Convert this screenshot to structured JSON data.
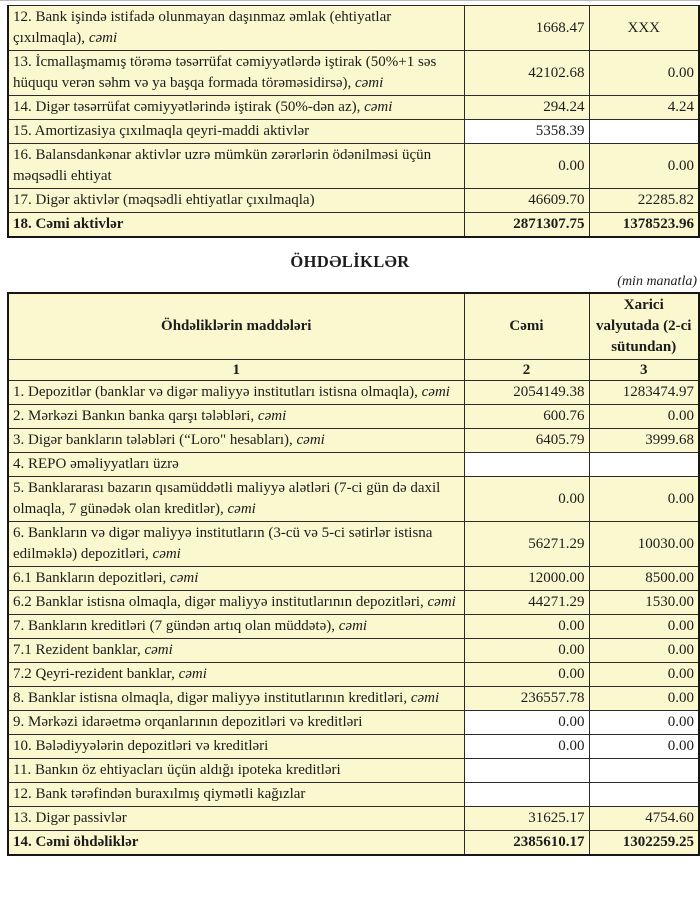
{
  "colors": {
    "cell_bg": "#fbf8cf",
    "border": "#2b2b2b",
    "text": "#1c1c1c",
    "empty_cell_bg": "#ffffff"
  },
  "assets_table": {
    "rows": [
      {
        "label": "12. Bank işində istifadə olunmayan daşınmaz əmlak (ehtiyatlar çıxılmaqla), ",
        "em": "cəmi",
        "c2": "1668.47",
        "c3": "XXX",
        "c3_center": true
      },
      {
        "label": "13. İcmallaşmamış törəmə təsərrüfat cəmiyyətlərdə iştirak (50%+1 səs hüququ verən səhm və ya başqa formada törəməsidirsə), ",
        "em": "cəmi",
        "c2": "42102.68",
        "c3": "0.00"
      },
      {
        "label": "14. Digər təsərrüfat cəmiyyətlərində iştirak (50%-dən az), ",
        "em": "cəmi",
        "c2": "294.24",
        "c3": "4.24"
      },
      {
        "label": "15. Amortizasiya çıxılmaqla qeyri-maddi aktivlər",
        "c2": "5358.39",
        "c3": "",
        "white": true
      },
      {
        "label": "16. Balansdankənar aktivlər uzrə mümkün zərərlərin ödənilməsi üçün məqsədli ehtiyat",
        "c2": "0.00",
        "c3": "0.00"
      },
      {
        "label": "17. Digər aktivlər (məqsədli ehtiyatlar çıxılmaqla)",
        "c2": "46609.70",
        "c3": "22285.82"
      },
      {
        "label": "18. Cəmi aktivlər",
        "c2": "2871307.75",
        "c3": "1378523.96",
        "bold": true
      }
    ]
  },
  "liabilities": {
    "title": "ÖHDƏLİKLƏR",
    "unit_note": "(min manatla)",
    "header": {
      "col1": "Öhdəliklərin maddələri",
      "col2": "Cəmi",
      "col3": "Xarici valyutada (2-ci sütundan)"
    },
    "col_numbers": [
      "1",
      "2",
      "3"
    ],
    "rows": [
      {
        "label": "1. Depozitlər (banklar və digər maliyyə institutları istisna olmaqla), ",
        "em": "cəmi",
        "c2": "2054149.38",
        "c3": "1283474.97"
      },
      {
        "label": "2. Mərkəzi Bankın banka qarşı tələbləri, ",
        "em": "cəmi",
        "c2": "600.76",
        "c3": "0.00"
      },
      {
        "label": "3. Digər bankların tələbləri (“Loro\" hesabları), ",
        "em": "cəmi",
        "c2": "6405.79",
        "c3": "3999.68"
      },
      {
        "label": "4. REPO əməliyyatları  üzrə",
        "c2": "",
        "c3": "",
        "white": true
      },
      {
        "label": "5. Banklararası bazarın qısamüddətli maliyyə alətləri (7-ci gün də daxil olmaqla, 7 günədək olan kreditlər), ",
        "em": "cəmi",
        "c2": "0.00",
        "c3": "0.00"
      },
      {
        "label": "6. Bankların və digər maliyyə institutların (3-cü və 5-ci sətirlər istisna edilməklə) depozitləri, ",
        "em": "cəmi",
        "c2": "56271.29",
        "c3": "10030.00"
      },
      {
        "label": "6.1  Bankların depozitləri, ",
        "em": "cəmi",
        "c2": "12000.00",
        "c3": "8500.00"
      },
      {
        "label": "6.2 Banklar istisna olmaqla, digər maliyyə institutlarının depozitləri, ",
        "em": "cəmi",
        "c2": "44271.29",
        "c3": "1530.00"
      },
      {
        "label": "7. Bankların kreditləri (7 gündən artıq olan müddətə), ",
        "em": "cəmi",
        "c2": "0.00",
        "c3": "0.00"
      },
      {
        "label": "7.1 Rezident banklar, ",
        "em": "cəmi",
        "c2": "0.00",
        "c3": "0.00"
      },
      {
        "label": "7.2 Qeyri-rezident banklar, ",
        "em": "cəmi",
        "c2": "0.00",
        "c3": "0.00"
      },
      {
        "label": "8. Banklar istisna olmaqla, digər maliyyə institutlarının kreditləri, ",
        "em": "cəmi",
        "c2": "236557.78",
        "c3": "0.00"
      },
      {
        "label": "9. Mərkəzi idarəetmə orqanlarının depozitləri və kreditləri",
        "c2": "0.00",
        "c3": "0.00",
        "white": true
      },
      {
        "label": "10. Bələdiyyələrin depozitləri və kreditləri",
        "c2": "0.00",
        "c3": "0.00",
        "white": true
      },
      {
        "label": "11. Bankın öz ehtiyacları üçün aldığı ipoteka kreditləri",
        "c2": "",
        "c3": "",
        "white": true
      },
      {
        "label": "12. Bank tərəfindən buraxılmış qiymətli kağızlar",
        "c2": "",
        "c3": "",
        "white": true
      },
      {
        "label": "13. Digər passivlər",
        "c2": "31625.17",
        "c3": "4754.60"
      },
      {
        "label": "14. Cəmi öhdəliklər",
        "c2": "2385610.17",
        "c3": "1302259.25",
        "bold": true
      }
    ]
  }
}
